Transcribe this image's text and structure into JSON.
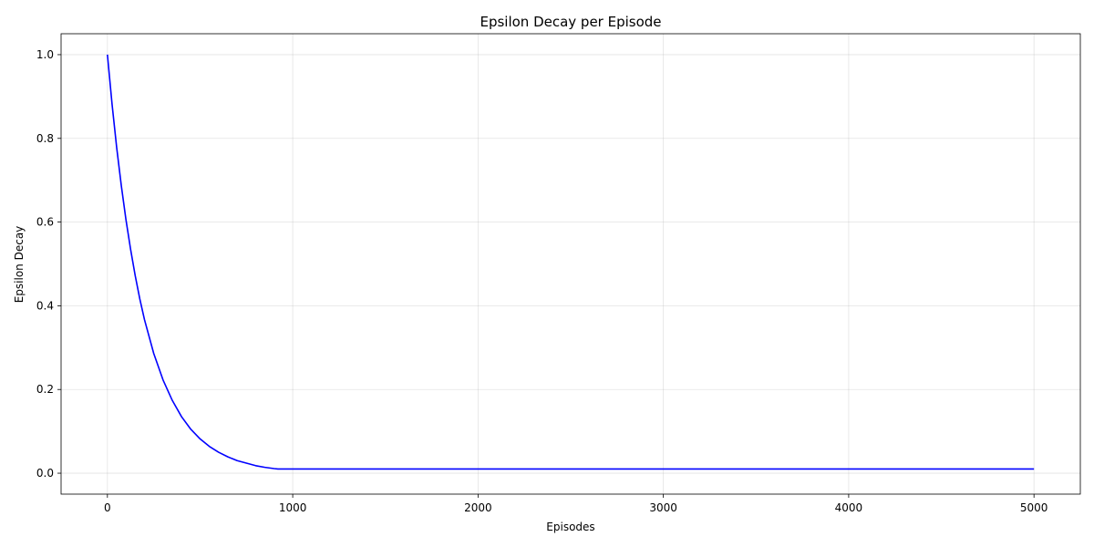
{
  "chart_data": {
    "type": "line",
    "title": "Epsilon Decay per Episode",
    "xlabel": "Episodes",
    "ylabel": "Epsilon Decay",
    "xlim": [
      -250,
      5250
    ],
    "ylim": [
      -0.05,
      1.05
    ],
    "xticks": [
      0,
      1000,
      2000,
      3000,
      4000,
      5000
    ],
    "yticks": [
      0.0,
      0.2,
      0.4,
      0.6,
      0.8,
      1.0
    ],
    "xtick_labels": [
      "0",
      "1000",
      "2000",
      "3000",
      "4000",
      "5000"
    ],
    "ytick_labels": [
      "0.0",
      "0.2",
      "0.4",
      "0.6",
      "0.8",
      "1.0"
    ],
    "grid": true,
    "series": [
      {
        "color": "#0000ff",
        "x": [
          0,
          25,
          50,
          75,
          100,
          125,
          150,
          175,
          200,
          250,
          300,
          350,
          400,
          450,
          500,
          550,
          600,
          650,
          700,
          750,
          800,
          850,
          900,
          920,
          1000,
          1500,
          2000,
          2500,
          3000,
          3500,
          4000,
          4500,
          5000
        ],
        "y": [
          1.0,
          0.882,
          0.778,
          0.687,
          0.606,
          0.535,
          0.472,
          0.416,
          0.367,
          0.286,
          0.223,
          0.174,
          0.135,
          0.105,
          0.082,
          0.064,
          0.05,
          0.039,
          0.03,
          0.024,
          0.018,
          0.014,
          0.011,
          0.01,
          0.01,
          0.01,
          0.01,
          0.01,
          0.01,
          0.01,
          0.01,
          0.01,
          0.01
        ]
      }
    ]
  }
}
